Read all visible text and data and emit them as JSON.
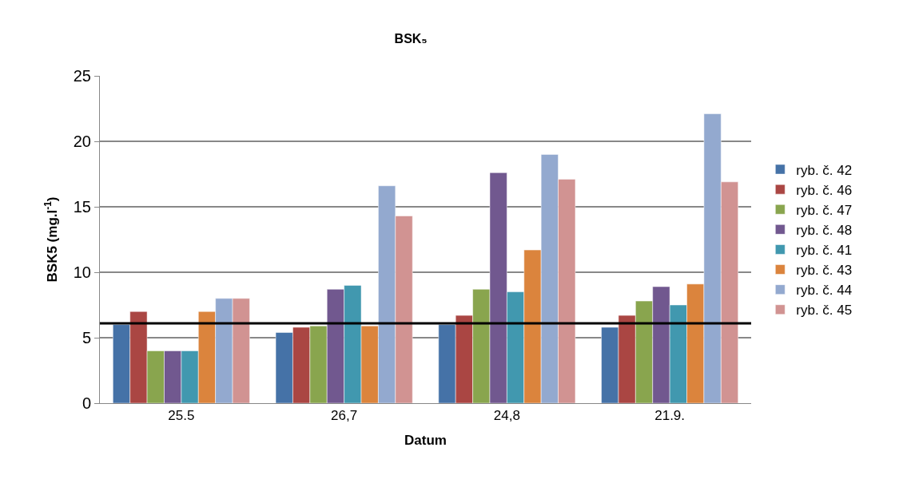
{
  "chart_data": {
    "type": "bar",
    "title": "BSK₅",
    "xlabel": "Datum",
    "ylabel": "BSK5 (mg.l$^{-1}$)",
    "categories": [
      "25.5",
      "26,7",
      "24,8",
      "21.9."
    ],
    "series": [
      {
        "name": "ryb. č. 42",
        "color": "#4572a7",
        "values": [
          6.0,
          5.4,
          6.0,
          5.8
        ]
      },
      {
        "name": "ryb. č. 46",
        "color": "#aa4643",
        "values": [
          7.0,
          5.8,
          6.7,
          6.7
        ]
      },
      {
        "name": "ryb. č. 47",
        "color": "#89a54e",
        "values": [
          4.0,
          5.9,
          8.7,
          7.8
        ]
      },
      {
        "name": "ryb. č. 48",
        "color": "#71588f",
        "values": [
          4.0,
          8.7,
          17.6,
          8.9
        ]
      },
      {
        "name": "ryb. č. 41",
        "color": "#4198af",
        "values": [
          4.0,
          9.0,
          8.5,
          7.5
        ]
      },
      {
        "name": "ryb. č. 43",
        "color": "#db843d",
        "values": [
          7.0,
          5.9,
          11.7,
          9.1
        ]
      },
      {
        "name": "ryb. č. 44",
        "color": "#93a9cf",
        "values": [
          8.0,
          16.6,
          19.0,
          22.1
        ]
      },
      {
        "name": "ryb. č. 45",
        "color": "#d19392",
        "values": [
          8.0,
          14.3,
          17.1,
          16.9
        ]
      }
    ],
    "ylim": [
      0,
      25
    ],
    "yticks": [
      0,
      5,
      10,
      15,
      20,
      25
    ],
    "grid": "y",
    "legend": "right",
    "ref_lines": [
      {
        "axis": "y",
        "value": 6.1,
        "color": "#000000",
        "line_style": "solid"
      }
    ]
  }
}
